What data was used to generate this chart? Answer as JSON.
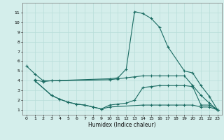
{
  "xlabel": "Humidex (Indice chaleur)",
  "xlim": [
    -0.5,
    23.5
  ],
  "ylim": [
    0.5,
    12
  ],
  "xticks": [
    0,
    1,
    2,
    3,
    4,
    5,
    6,
    7,
    8,
    9,
    10,
    11,
    12,
    13,
    14,
    15,
    16,
    17,
    18,
    19,
    20,
    21,
    22,
    23
  ],
  "yticks": [
    1,
    2,
    3,
    4,
    5,
    6,
    7,
    8,
    9,
    10,
    11
  ],
  "bg_color": "#d4eeeb",
  "line_color": "#1a6b62",
  "grid_color": "#b8ddd9",
  "lines": [
    {
      "x": [
        0,
        1,
        2,
        3,
        10,
        11,
        12,
        13,
        14,
        15,
        16,
        17,
        19,
        20,
        21,
        22,
        23
      ],
      "y": [
        5.5,
        4.7,
        4.0,
        4.0,
        4.2,
        4.3,
        5.2,
        11.1,
        10.9,
        10.4,
        9.5,
        7.5,
        5.0,
        4.8,
        3.5,
        2.4,
        1.0
      ]
    },
    {
      "x": [
        1,
        2,
        3,
        4,
        10,
        11,
        12,
        13,
        14,
        15,
        16,
        17,
        18,
        19,
        20,
        21,
        22,
        23
      ],
      "y": [
        4.1,
        3.9,
        4.0,
        4.0,
        4.1,
        4.2,
        4.3,
        4.4,
        4.5,
        4.5,
        4.5,
        4.5,
        4.5,
        4.5,
        3.5,
        2.5,
        1.7,
        1.0
      ]
    },
    {
      "x": [
        1,
        3,
        4,
        5,
        6,
        7,
        8,
        9,
        10,
        11,
        12,
        13,
        14,
        15,
        16,
        17,
        18,
        19,
        20,
        21,
        22,
        23
      ],
      "y": [
        4.0,
        2.5,
        2.1,
        1.8,
        1.6,
        1.5,
        1.3,
        1.1,
        1.5,
        1.6,
        1.7,
        2.0,
        3.3,
        3.4,
        3.5,
        3.5,
        3.5,
        3.5,
        3.4,
        1.5,
        1.5,
        1.0
      ]
    },
    {
      "x": [
        1,
        3,
        4,
        5,
        6,
        7,
        8,
        9,
        10,
        14,
        15,
        16,
        17,
        18,
        19,
        20,
        21,
        22,
        23
      ],
      "y": [
        4.0,
        2.5,
        2.1,
        1.8,
        1.6,
        1.5,
        1.3,
        1.1,
        1.3,
        1.5,
        1.5,
        1.5,
        1.5,
        1.5,
        1.5,
        1.5,
        1.3,
        1.3,
        1.0
      ]
    }
  ]
}
